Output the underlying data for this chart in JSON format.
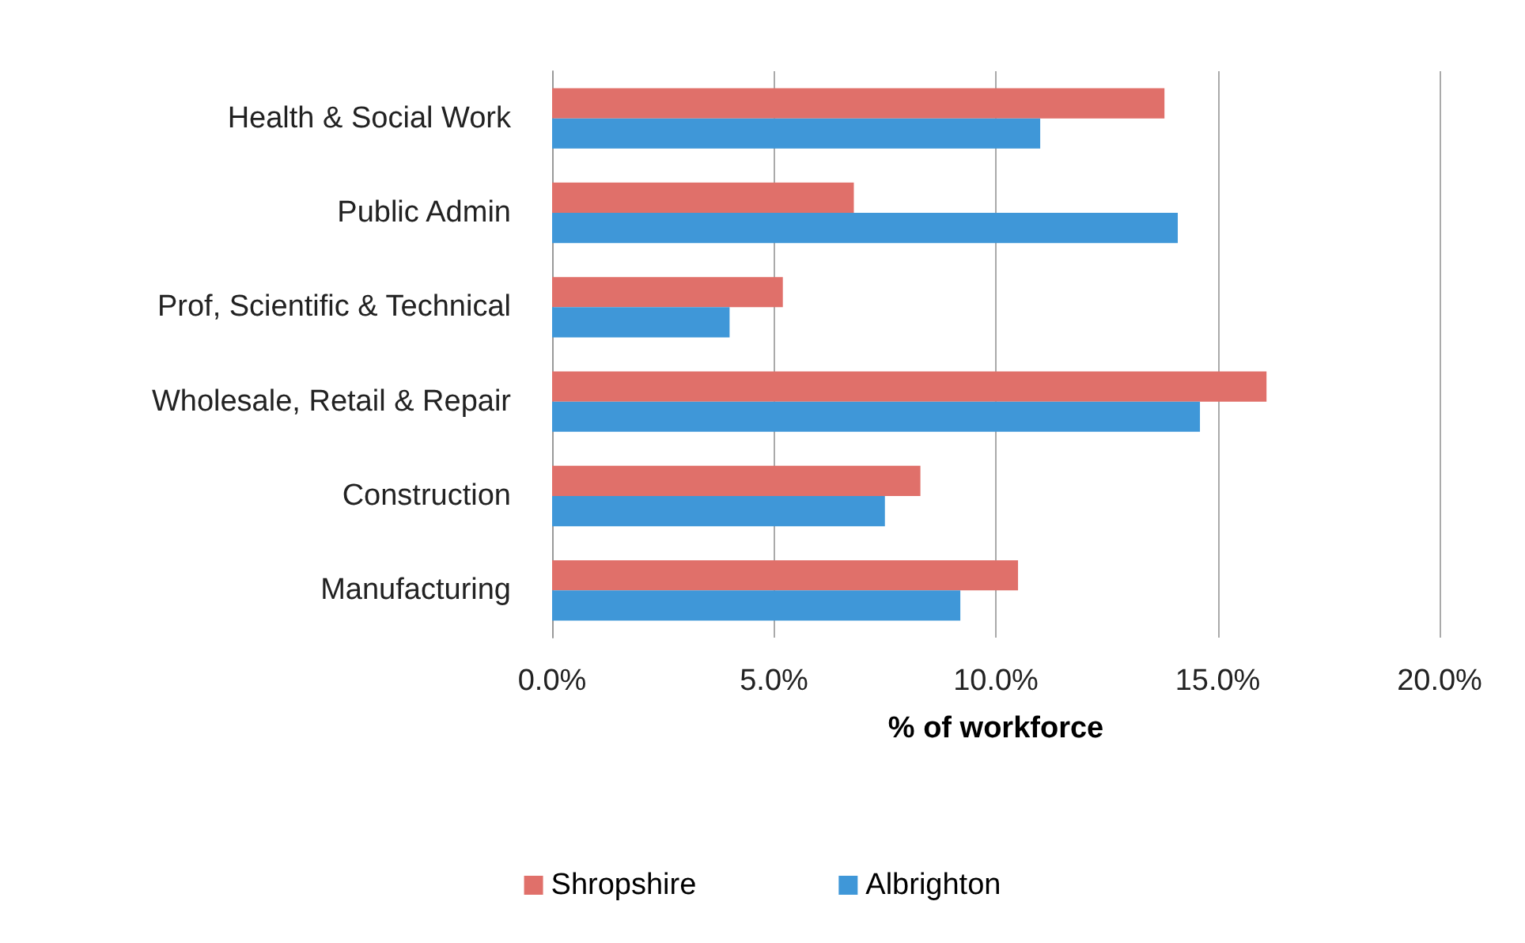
{
  "chart_data": {
    "type": "bar",
    "orientation": "horizontal",
    "categories": [
      "Health & Social Work",
      "Public Admin",
      "Prof, Scientific & Technical",
      "Wholesale, Retail & Repair",
      "Construction",
      "Manufacturing"
    ],
    "series": [
      {
        "name": "Shropshire",
        "color": "#e0706a",
        "values": [
          13.8,
          6.8,
          5.2,
          16.1,
          8.3,
          10.5
        ]
      },
      {
        "name": "Albrighton",
        "color": "#3f97d8",
        "values": [
          11.0,
          14.1,
          4.0,
          14.6,
          7.5,
          9.2
        ]
      }
    ],
    "xlabel": "% of workforce",
    "xlim": [
      0,
      20
    ],
    "xticks": [
      {
        "value": 0,
        "label": "0.0%"
      },
      {
        "value": 5,
        "label": "5.0%"
      },
      {
        "value": 10,
        "label": "10.0%"
      },
      {
        "value": 15,
        "label": "15.0%"
      },
      {
        "value": 20,
        "label": "20.0%"
      }
    ],
    "grid": "x",
    "legend": "bottom"
  }
}
